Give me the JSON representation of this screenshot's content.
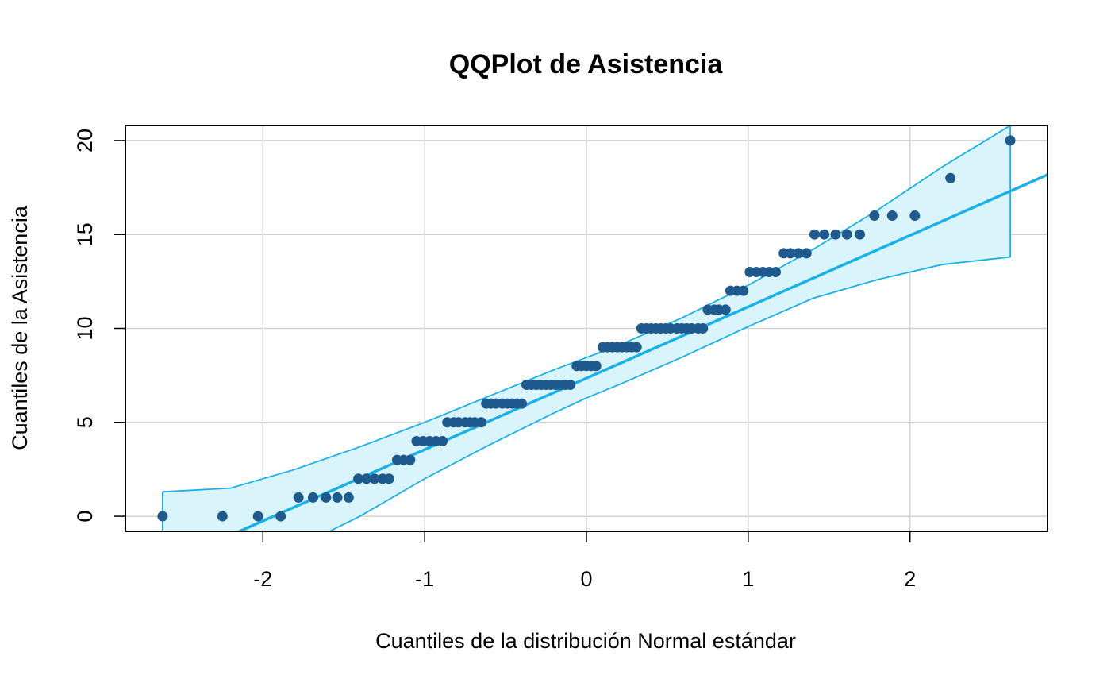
{
  "chart_data": {
    "type": "scatter",
    "title": "QQPlot de Asistencia",
    "xlabel": "Cuantiles de la distribución Normal estándar",
    "ylabel": "Cuantiles de la Asistencia",
    "xlim": [
      -2.85,
      2.85
    ],
    "ylim": [
      -0.8,
      20.8
    ],
    "xticks": [
      -2,
      -1,
      0,
      1,
      2
    ],
    "yticks": [
      0,
      5,
      10,
      15,
      20
    ],
    "xtick_labels": [
      "-2",
      "-1",
      "0",
      "1",
      "2"
    ],
    "ytick_labels": [
      "0",
      "5",
      "10",
      "15",
      "20"
    ],
    "grid": true,
    "point_color": "#1f5a8f",
    "line_color": "#1ab1ea",
    "band_fill": "#d9f4fb",
    "band_edge": "#1ab1ea",
    "reference_line": {
      "intercept": 7.35,
      "slope": 3.8
    },
    "confidence_band": {
      "x": [
        -2.62,
        -2.2,
        -1.8,
        -1.4,
        -1.0,
        -0.6,
        -0.2,
        0.0,
        0.2,
        0.6,
        1.0,
        1.4,
        1.8,
        2.2,
        2.62
      ],
      "upper": [
        1.3,
        1.5,
        2.5,
        3.7,
        5.0,
        6.4,
        7.8,
        8.45,
        9.1,
        10.6,
        12.3,
        14.2,
        16.3,
        18.6,
        20.8
      ],
      "lower": [
        -5.0,
        -3.4,
        -1.7,
        0.0,
        2.0,
        3.8,
        5.5,
        6.3,
        7.0,
        8.5,
        10.1,
        11.6,
        12.6,
        13.4,
        13.8
      ]
    },
    "series": [
      {
        "x": [
          -2.62,
          -2.25,
          -2.03,
          -1.89,
          -1.78,
          -1.69,
          -1.61,
          -1.54,
          -1.47,
          -1.41,
          -1.36,
          -1.31,
          -1.26,
          -1.22,
          -1.17,
          -1.13,
          -1.09,
          -1.05,
          -1.01,
          -0.97,
          -0.93,
          -0.89,
          -0.86,
          -0.82,
          -0.79,
          -0.75,
          -0.72,
          -0.69,
          -0.65,
          -0.62,
          -0.59,
          -0.56,
          -0.52,
          -0.49,
          -0.46,
          -0.43,
          -0.4,
          -0.37,
          -0.34,
          -0.31,
          -0.28,
          -0.25,
          -0.22,
          -0.19,
          -0.16,
          -0.13,
          -0.1,
          -0.06,
          -0.03,
          0.0,
          0.03,
          0.06,
          0.1,
          0.13,
          0.16,
          0.19,
          0.22,
          0.25,
          0.28,
          0.31,
          0.34,
          0.37,
          0.4,
          0.43,
          0.46,
          0.49,
          0.52,
          0.56,
          0.59,
          0.62,
          0.65,
          0.69,
          0.72,
          0.75,
          0.79,
          0.82,
          0.86,
          0.89,
          0.93,
          0.97,
          1.01,
          1.05,
          1.09,
          1.13,
          1.17,
          1.22,
          1.26,
          1.31,
          1.36,
          1.41,
          1.47,
          1.54,
          1.61,
          1.69,
          1.78,
          1.89,
          2.03,
          2.25,
          2.62
        ],
        "y": [
          0,
          0,
          0,
          0,
          1,
          1,
          1,
          1,
          1,
          2,
          2,
          2,
          2,
          2,
          3,
          3,
          3,
          4,
          4,
          4,
          4,
          4,
          5,
          5,
          5,
          5,
          5,
          5,
          5,
          6,
          6,
          6,
          6,
          6,
          6,
          6,
          6,
          7,
          7,
          7,
          7,
          7,
          7,
          7,
          7,
          7,
          7,
          8,
          8,
          8,
          8,
          8,
          9,
          9,
          9,
          9,
          9,
          9,
          9,
          9,
          10,
          10,
          10,
          10,
          10,
          10,
          10,
          10,
          10,
          10,
          10,
          10,
          10,
          11,
          11,
          11,
          11,
          12,
          12,
          12,
          13,
          13,
          13,
          13,
          13,
          14,
          14,
          14,
          14,
          15,
          15,
          15,
          15,
          15,
          16,
          16,
          16,
          18,
          20
        ]
      }
    ]
  }
}
